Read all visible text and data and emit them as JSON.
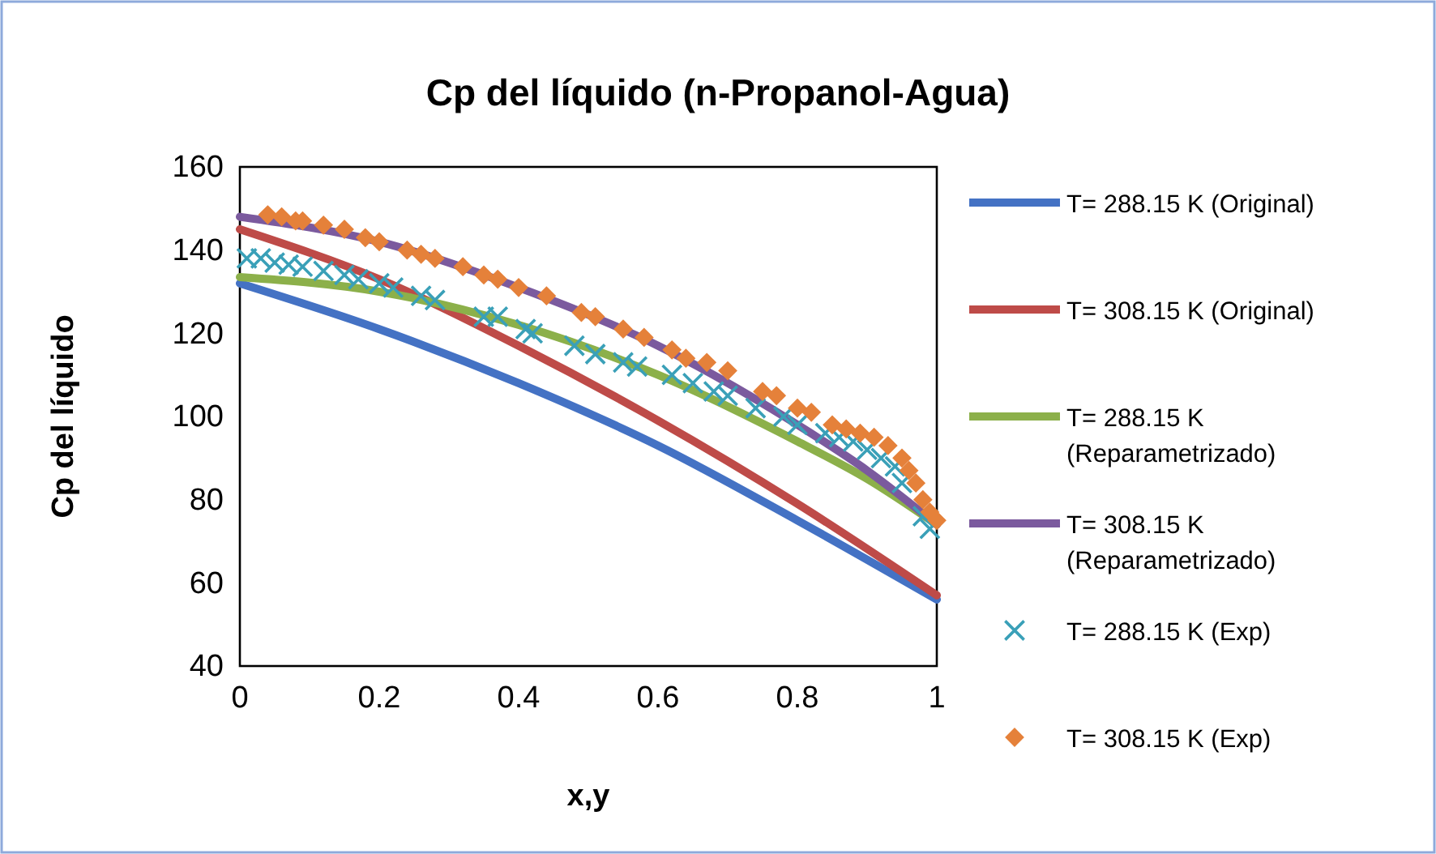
{
  "chart_data": {
    "type": "line",
    "title": "Cp del líquido (n-Propanol-Agua)",
    "xlabel": "x,y",
    "ylabel": "Cp del líquido",
    "xlim": [
      0,
      1
    ],
    "ylim": [
      40,
      160
    ],
    "xticks": [
      0,
      0.2,
      0.4,
      0.6,
      0.8,
      1
    ],
    "yticks": [
      40,
      60,
      80,
      100,
      120,
      140,
      160
    ],
    "grid": false,
    "legend": "right",
    "marker": "none",
    "line_style": "solid",
    "series": [
      {
        "name": "T= 288.15 K (Original)",
        "color": "#4472c4",
        "x": [
          0,
          0.2,
          0.4,
          0.6,
          0.8,
          1
        ],
        "values": [
          132,
          121,
          108,
          93,
          75,
          56
        ]
      },
      {
        "name": "T= 308.15 K (Original)",
        "color": "#be4b48",
        "x": [
          0,
          0.2,
          0.4,
          0.6,
          0.8,
          1
        ],
        "values": [
          145,
          133,
          117,
          99,
          79,
          57
        ]
      },
      {
        "name": "T= 288.15 K (Reparametrizado)",
        "color": "#8cb04a",
        "x": [
          0,
          0.2,
          0.4,
          0.6,
          0.8,
          0.9,
          1
        ],
        "values": [
          133.5,
          130,
          122,
          110,
          94,
          85,
          74
        ]
      },
      {
        "name": "T= 308.15 K (Reparametrizado)",
        "color": "#7b5a9e",
        "x": [
          0,
          0.2,
          0.4,
          0.6,
          0.8,
          0.9,
          1
        ],
        "values": [
          148,
          142,
          131,
          117,
          98,
          87,
          74
        ]
      },
      {
        "name": "T= 288.15 K (Exp)",
        "color": "#3aa0b8",
        "type": "scatter",
        "marker": "cross",
        "x": [
          0.01,
          0.03,
          0.05,
          0.07,
          0.09,
          0.12,
          0.15,
          0.17,
          0.2,
          0.22,
          0.26,
          0.28,
          0.35,
          0.37,
          0.41,
          0.42,
          0.48,
          0.51,
          0.55,
          0.57,
          0.62,
          0.65,
          0.68,
          0.7,
          0.74,
          0.78,
          0.8,
          0.84,
          0.86,
          0.88,
          0.9,
          0.92,
          0.94,
          0.95,
          0.97,
          0.98,
          0.99
        ],
        "values": [
          138,
          138,
          137,
          136.5,
          136,
          135,
          134,
          133,
          132,
          131,
          129,
          128,
          124,
          124,
          121,
          120,
          117,
          115,
          113,
          112,
          110,
          108,
          106,
          105,
          102,
          100,
          98,
          96,
          95,
          94,
          92,
          90,
          88,
          84,
          null,
          76,
          73
        ]
      },
      {
        "name": "T= 308.15 K (Exp)",
        "color": "#e5813a",
        "type": "scatter",
        "marker": "diamond",
        "x": [
          0.04,
          0.06,
          0.08,
          0.09,
          0.12,
          0.15,
          0.18,
          0.2,
          0.24,
          0.26,
          0.28,
          0.32,
          0.35,
          0.37,
          0.4,
          0.44,
          0.49,
          0.51,
          0.55,
          0.58,
          0.62,
          0.64,
          0.67,
          0.7,
          0.75,
          0.77,
          0.8,
          0.82,
          0.85,
          0.87,
          0.89,
          0.91,
          0.93,
          0.95,
          0.96,
          0.97,
          0.98,
          0.99,
          1
        ],
        "values": [
          148.5,
          148,
          147,
          147,
          146,
          145,
          143,
          142,
          140,
          139,
          138,
          136,
          134,
          133,
          131,
          129,
          125,
          124,
          121,
          119,
          116,
          114,
          113,
          111,
          106,
          105,
          102,
          101,
          98,
          97,
          96,
          95,
          93,
          90,
          87,
          84,
          80,
          77,
          75
        ]
      }
    ]
  }
}
